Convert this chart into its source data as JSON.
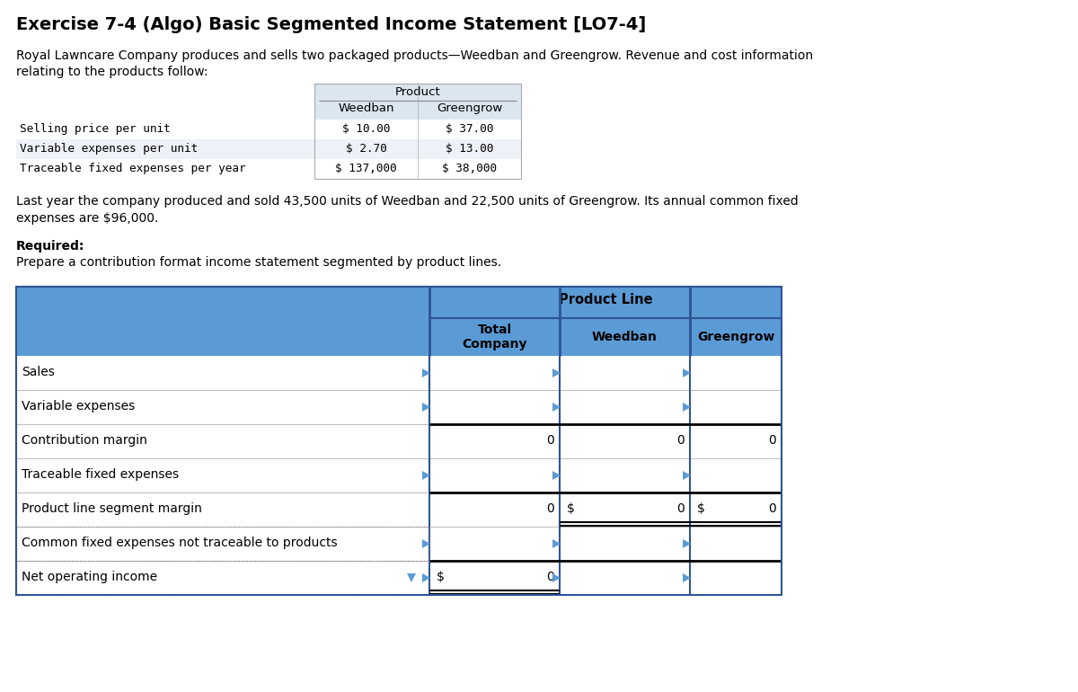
{
  "title": "Exercise 7-4 (Algo) Basic Segmented Income Statement [LO7-4]",
  "intro_line1": "Royal Lawncare Company produces and sells two packaged products—Weedban and Greengrow. Revenue and cost information",
  "intro_line2": "relating to the products follow:",
  "pt_header": "Product",
  "pt_col1": "Weedban",
  "pt_col2": "Greengrow",
  "pt_rows": [
    {
      "label": "Selling price per unit",
      "val1": "$ 10.00",
      "val2": "$ 37.00"
    },
    {
      "label": "Variable expenses per unit",
      "val1": "$ 2.70",
      "val2": "$ 13.00"
    },
    {
      "label": "Traceable fixed expenses per year",
      "val1": "$ 137,000",
      "val2": "$ 38,000"
    }
  ],
  "mid_line1": "Last year the company produced and sold 43,500 units of Weedban and 22,500 units of Greengrow. Its annual common fixed",
  "mid_line2": "expenses are $96,000.",
  "req_line1": "Required:",
  "req_line2": "Prepare a contribution format income statement segmented by product lines.",
  "it_header1": "Product Line",
  "it_col_total": "Total\nCompany",
  "it_col_weedban": "Weedban",
  "it_col_greengrow": "Greengrow",
  "it_rows": [
    {
      "label": "Sales",
      "total": "",
      "weedban": "",
      "greengrow": "",
      "arrow": true,
      "top_line": false,
      "dbl_bottom": false,
      "dol_total": false,
      "dol_wb": false,
      "dol_gg": false
    },
    {
      "label": "Variable expenses",
      "total": "",
      "weedban": "",
      "greengrow": "",
      "arrow": true,
      "top_line": false,
      "dbl_bottom": false,
      "dol_total": false,
      "dol_wb": false,
      "dol_gg": false
    },
    {
      "label": "Contribution margin",
      "total": "0",
      "weedban": "0",
      "greengrow": "0",
      "arrow": false,
      "top_line": true,
      "dbl_bottom": false,
      "dol_total": false,
      "dol_wb": false,
      "dol_gg": false
    },
    {
      "label": "Traceable fixed expenses",
      "total": "",
      "weedban": "",
      "greengrow": "",
      "arrow": true,
      "top_line": false,
      "dbl_bottom": false,
      "dol_total": false,
      "dol_wb": false,
      "dol_gg": false
    },
    {
      "label": "Product line segment margin",
      "total": "0",
      "weedban": "0",
      "greengrow": "0",
      "arrow": false,
      "top_line": true,
      "dbl_bottom": true,
      "dol_total": false,
      "dol_wb": true,
      "dol_gg": true
    },
    {
      "label": "Common fixed expenses not traceable to products",
      "total": "",
      "weedban": "",
      "greengrow": "",
      "arrow": true,
      "top_line": false,
      "dbl_bottom": false,
      "dol_total": false,
      "dol_wb": false,
      "dol_gg": false
    },
    {
      "label": "Net operating income",
      "total": "0",
      "weedban": "",
      "greengrow": "",
      "arrow": true,
      "top_line": true,
      "dbl_bottom": true,
      "dol_total": true,
      "dol_wb": false,
      "dol_gg": false
    }
  ],
  "hdr_blue": "#5b9bd5",
  "border_dark": "#2f5496",
  "pt_hdr_bg": "#dce6f1",
  "pt_row_alt": "#eef2f8"
}
